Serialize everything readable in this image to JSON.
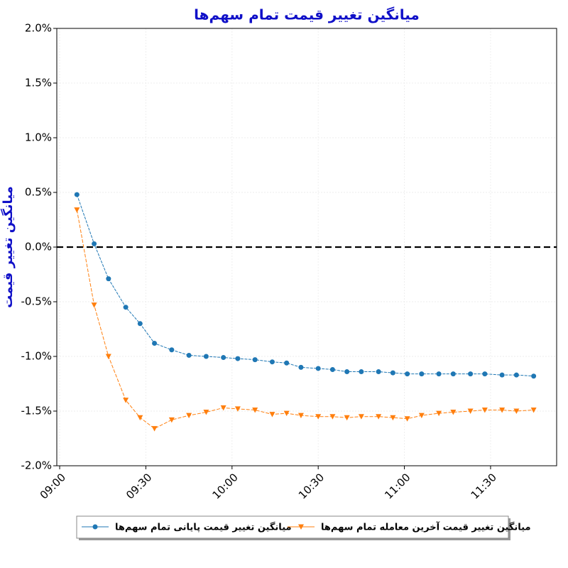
{
  "chart_data": {
    "type": "line",
    "title": "میانگین تغییر قیمت تمام سهم‌ها",
    "y_label": "میانگین تغییر قیمت",
    "x": [
      "09:06",
      "09:12",
      "09:17",
      "09:23",
      "09:28",
      "09:33",
      "09:39",
      "09:45",
      "09:51",
      "09:57",
      "10:02",
      "10:08",
      "10:14",
      "10:19",
      "10:24",
      "10:30",
      "10:35",
      "10:40",
      "10:45",
      "10:51",
      "10:56",
      "11:01",
      "11:06",
      "11:12",
      "11:17",
      "11:23",
      "11:28",
      "11:34",
      "11:39",
      "11:45"
    ],
    "series": [
      {
        "name": "میانگین تغییر قیمت پایانی تمام سهم‌ها",
        "color": "#1f77b4",
        "marker": "circle",
        "values": [
          0.48,
          0.03,
          -0.29,
          -0.55,
          -0.7,
          -0.88,
          -0.94,
          -0.99,
          -1.0,
          -1.01,
          -1.02,
          -1.03,
          -1.05,
          -1.06,
          -1.1,
          -1.11,
          -1.12,
          -1.14,
          -1.14,
          -1.14,
          -1.15,
          -1.16,
          -1.16,
          -1.16,
          -1.16,
          -1.16,
          -1.16,
          -1.17,
          -1.17,
          -1.18
        ]
      },
      {
        "name": "میانگین تغییر قیمت آخرین معامله تمام سهم‌ها",
        "color": "#ff7f0e",
        "marker": "triangle-down",
        "values": [
          0.34,
          -0.53,
          -1.0,
          -1.4,
          -1.56,
          -1.66,
          -1.58,
          -1.54,
          -1.51,
          -1.47,
          -1.48,
          -1.49,
          -1.53,
          -1.52,
          -1.54,
          -1.55,
          -1.55,
          -1.56,
          -1.55,
          -1.55,
          -1.56,
          -1.57,
          -1.54,
          -1.52,
          -1.51,
          -1.5,
          -1.49,
          -1.49,
          -1.5,
          -1.49
        ]
      }
    ],
    "xlim": [
      "08:59",
      "11:53"
    ],
    "xticks": [
      "09:00",
      "09:30",
      "10:00",
      "10:30",
      "11:00",
      "11:30"
    ],
    "ylim": [
      -2,
      2
    ],
    "yticks": [
      {
        "value": -2,
        "label": "-2.0%"
      },
      {
        "value": -1.5,
        "label": "-1.5%"
      },
      {
        "value": -1,
        "label": "-1.0%"
      },
      {
        "value": -0.5,
        "label": "-0.5%"
      },
      {
        "value": 0,
        "label": "0.0%"
      },
      {
        "value": 0.5,
        "label": "0.5%"
      },
      {
        "value": 1,
        "label": "1.0%"
      },
      {
        "value": 1.5,
        "label": "1.5%"
      },
      {
        "value": 2,
        "label": "2.0%"
      }
    ],
    "reference_line": 0,
    "grid": true,
    "legend": "bottom"
  }
}
